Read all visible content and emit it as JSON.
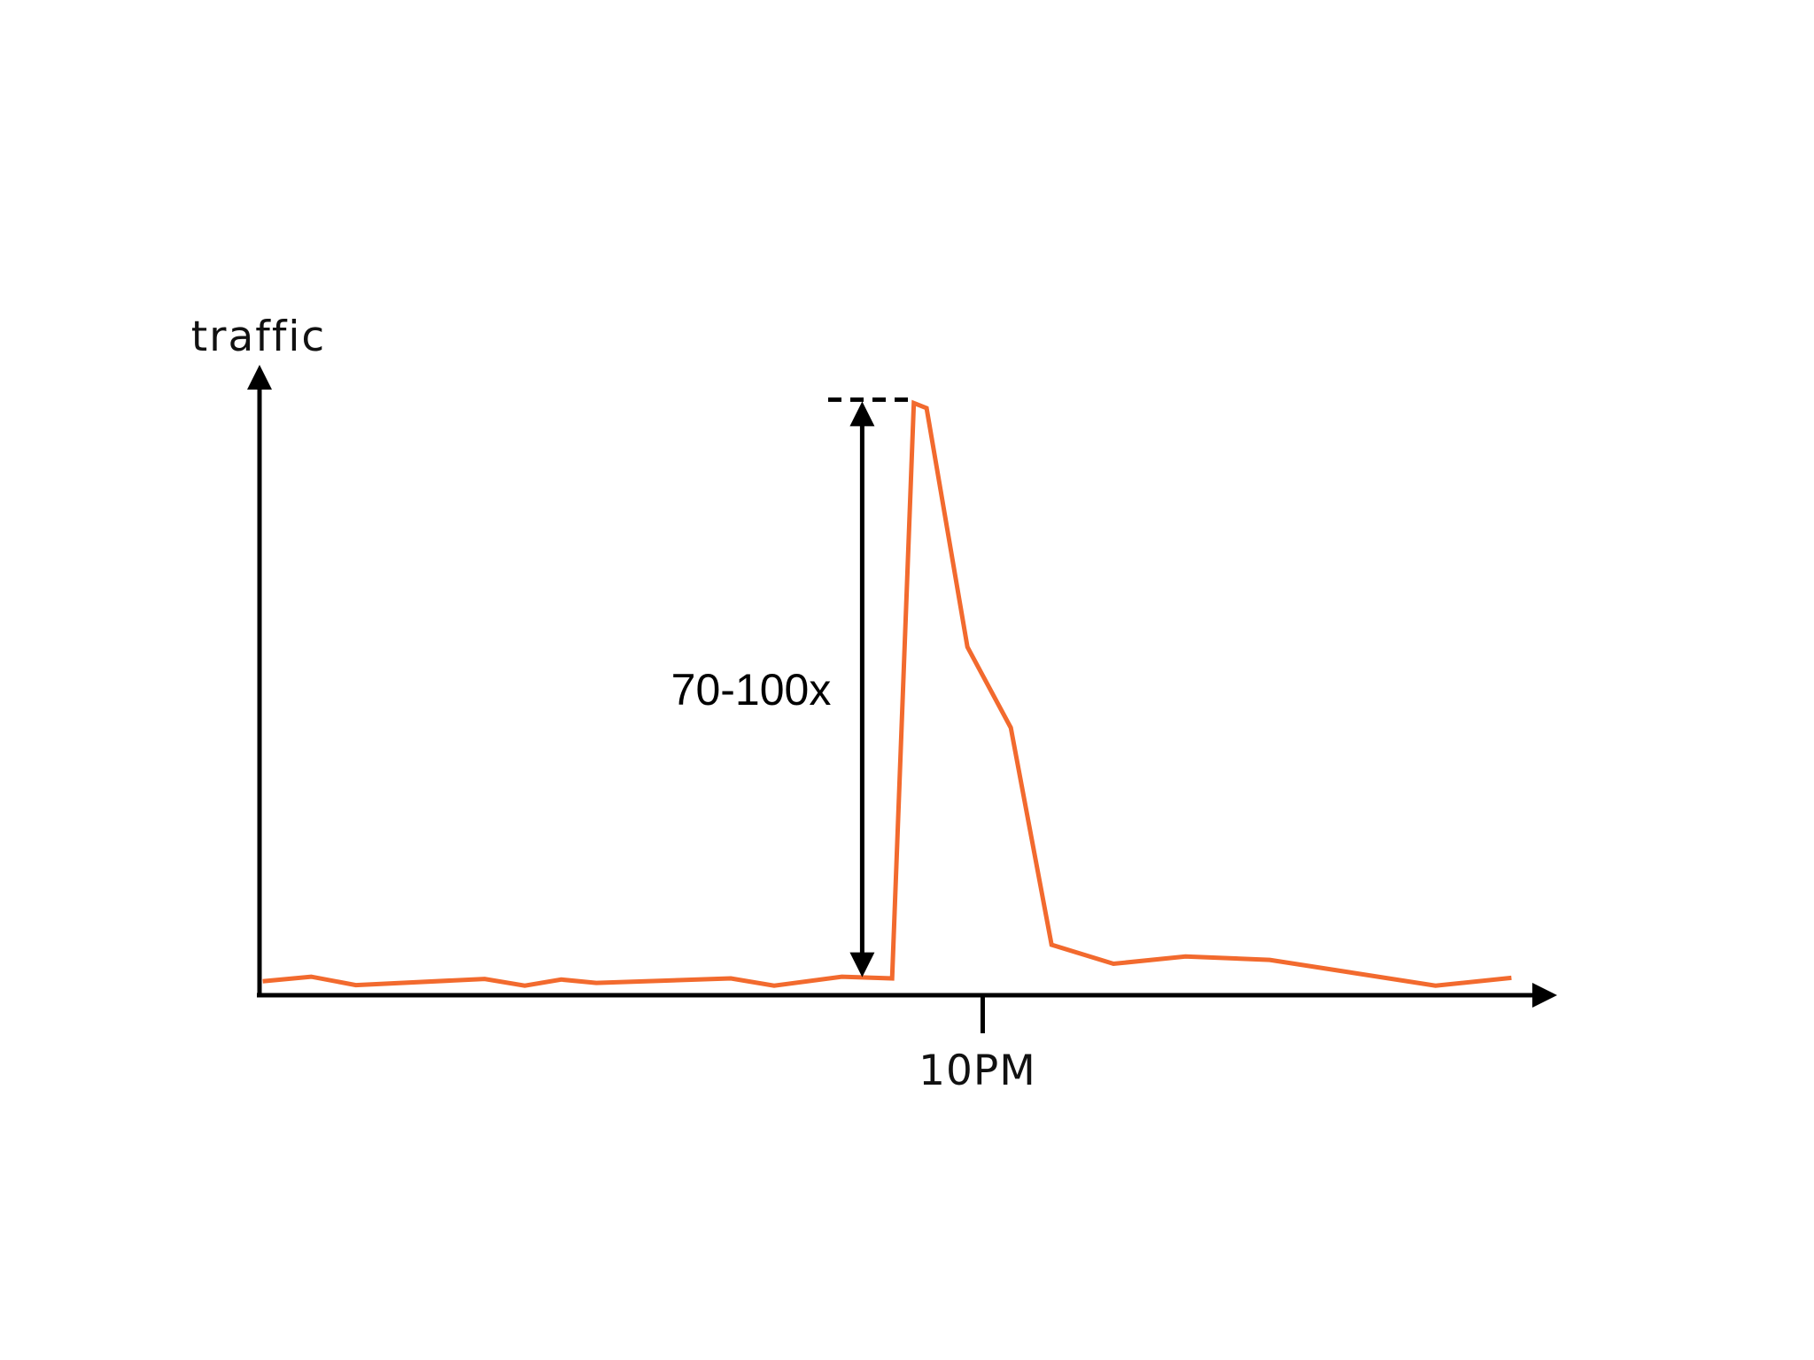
{
  "chart_data": {
    "type": "line",
    "ylabel": "traffic",
    "xlabel": "",
    "x_ticks": [
      {
        "x": 11.34,
        "label": "10PM"
      }
    ],
    "xlim": [
      0,
      20
    ],
    "ylim": [
      0,
      36
    ],
    "series": [
      {
        "color": "#f26a2e",
        "points": [
          {
            "x": 0.05,
            "y": 0.83
          },
          {
            "x": 0.81,
            "y": 1.1
          },
          {
            "x": 1.51,
            "y": 0.6
          },
          {
            "x": 3.53,
            "y": 0.97
          },
          {
            "x": 4.16,
            "y": 0.57
          },
          {
            "x": 4.73,
            "y": 0.93
          },
          {
            "x": 5.28,
            "y": 0.73
          },
          {
            "x": 7.39,
            "y": 1.0
          },
          {
            "x": 8.07,
            "y": 0.57
          },
          {
            "x": 9.13,
            "y": 1.1
          },
          {
            "x": 9.92,
            "y": 1.0
          },
          {
            "x": 10.26,
            "y": 35.2
          },
          {
            "x": 10.46,
            "y": 34.9
          },
          {
            "x": 11.1,
            "y": 20.7
          },
          {
            "x": 11.78,
            "y": 15.9
          },
          {
            "x": 12.42,
            "y": 3.0
          },
          {
            "x": 13.39,
            "y": 1.87
          },
          {
            "x": 14.52,
            "y": 2.3
          },
          {
            "x": 15.84,
            "y": 2.1
          },
          {
            "x": 18.44,
            "y": 0.57
          },
          {
            "x": 19.63,
            "y": 1.03
          }
        ]
      }
    ],
    "annotations": [
      {
        "text": "70-100x",
        "x": 9.45,
        "y_from": 0.97,
        "y_to": 35.4
      }
    ],
    "grid": false,
    "legend": "none"
  }
}
